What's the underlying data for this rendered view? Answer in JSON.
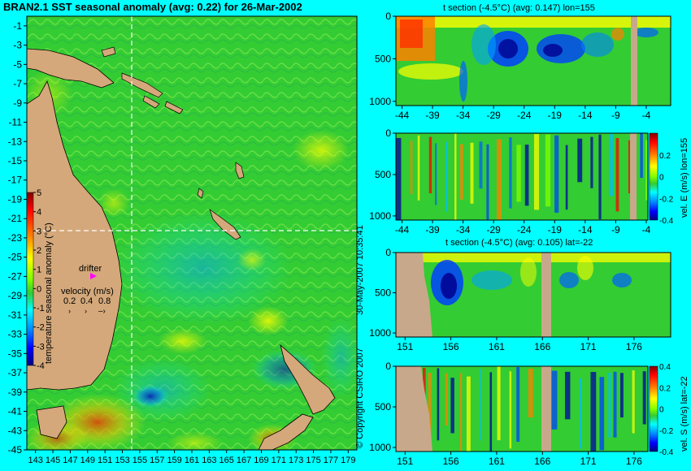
{
  "title": "BRAN2.1 SST seasonal anomaly (avg: 0.22) for 26-Mar-2002",
  "copyright": "© Copyright CSIRO 2007",
  "timestamp": "30-May-2007 10:35:41",
  "colors": {
    "background": "#00ffff",
    "ocean_base": "#33cc33",
    "land": "#d4a87a",
    "seafloor": "#c8a88a",
    "drifter": "#ff00ff",
    "dashed_line": "#ffffff",
    "colorscale": [
      "#000080",
      "#0000ff",
      "#0080ff",
      "#00c0ff",
      "#00ffff",
      "#00ff80",
      "#33cc33",
      "#80ff00",
      "#ffff00",
      "#ffc000",
      "#ff8000",
      "#ff0000",
      "#b00000",
      "#800000"
    ]
  },
  "chart_data": [
    {
      "type": "heatmap",
      "name": "map",
      "title": "BRAN2.1 SST seasonal anomaly (avg: 0.22) for 26-Mar-2002",
      "xlabel": "",
      "ylabel": "",
      "x_ticks": [
        "143",
        "145",
        "147",
        "149",
        "151",
        "153",
        "155",
        "157",
        "159",
        "161",
        "163",
        "165",
        "167",
        "169",
        "171",
        "173",
        "175",
        "177",
        "179"
      ],
      "y_ticks": [
        "-1",
        "-3",
        "-5",
        "-7",
        "-9",
        "-11",
        "-13",
        "-15",
        "-17",
        "-19",
        "-21",
        "-23",
        "-25",
        "-27",
        "-29",
        "-31",
        "-33",
        "-35",
        "-37",
        "-39",
        "-41",
        "-43",
        "-45"
      ],
      "xlim": [
        142,
        180
      ],
      "ylim": [
        -45,
        0
      ],
      "section_lon": 155,
      "section_lat": -22,
      "colorbar": {
        "label": "temperature seasonal anomaly (°C)",
        "ticks": [
          "5",
          "4",
          "3",
          "2",
          "1",
          "0",
          "-1",
          "-2",
          "-3",
          "-4"
        ],
        "range": [
          -4,
          5
        ]
      },
      "legend": {
        "drifter_label": "drifter",
        "velocity_label": "velocity (m/s)",
        "velocity_values": [
          "0.2",
          "0.4",
          "0.8"
        ]
      }
    },
    {
      "type": "heatmap",
      "name": "t-section-lon",
      "title": "t section (-4.5°C) (avg: 0.147) lon=155",
      "x_ticks": [
        "-44",
        "-39",
        "-34",
        "-29",
        "-24",
        "-19",
        "-14",
        "-9",
        "-4"
      ],
      "y_ticks": [
        "0",
        "500",
        "1000"
      ],
      "xlim": [
        -45,
        0
      ],
      "ylim": [
        1050,
        0
      ]
    },
    {
      "type": "heatmap",
      "name": "velE-section-lon",
      "x_ticks": [
        "-44",
        "-39",
        "-34",
        "-29",
        "-24",
        "-19",
        "-14",
        "-9",
        "-4"
      ],
      "y_ticks": [
        "0",
        "500",
        "1000"
      ],
      "xlim": [
        -45,
        0
      ],
      "ylim": [
        1050,
        0
      ],
      "colorbar": {
        "label": "vel. E (m/s) lon=155",
        "ticks": [
          "0.2",
          "0",
          "-0.2",
          "-0.4"
        ],
        "range": [
          -0.4,
          0.4
        ]
      }
    },
    {
      "type": "heatmap",
      "name": "t-section-lat",
      "title": "t section (-4.5°C) (avg: 0.105) lat=-22",
      "x_ticks": [
        "151",
        "156",
        "161",
        "166",
        "171",
        "176"
      ],
      "y_ticks": [
        "0",
        "500",
        "1000"
      ],
      "xlim": [
        150,
        180
      ],
      "ylim": [
        1050,
        0
      ]
    },
    {
      "type": "heatmap",
      "name": "velS-section-lat",
      "x_ticks": [
        "151",
        "156",
        "161",
        "166",
        "171",
        "176"
      ],
      "y_ticks": [
        "0",
        "500",
        "1000"
      ],
      "xlim": [
        150,
        180
      ],
      "ylim": [
        1050,
        0
      ],
      "colorbar": {
        "label": "vel. S (m/s) lat=-22",
        "ticks": [
          "0.4",
          "0.2",
          "0",
          "-0.2",
          "-0.4"
        ],
        "range": [
          -0.4,
          0.4
        ]
      }
    }
  ]
}
